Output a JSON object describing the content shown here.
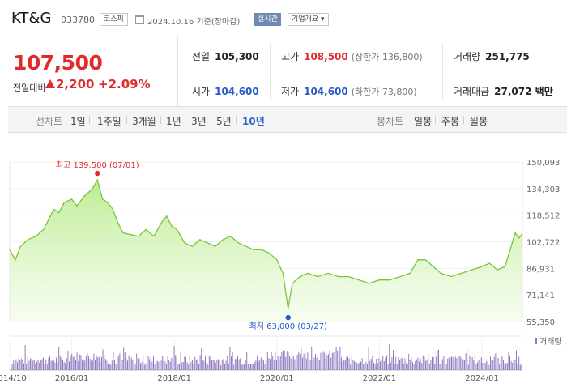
{
  "header": {
    "name": "KT&G",
    "code": "033780",
    "market": "코스피",
    "date": "2024.10.16 기준(장마감)",
    "realtime_label": "실시간",
    "corp_label": "기업개요 ▾"
  },
  "quote": {
    "price": "107,500",
    "change_label": "전일대비",
    "change": "2,200",
    "change_pct": "+2.09%"
  },
  "stats": {
    "prev_label": "전일",
    "prev": "105,300",
    "high_label": "고가",
    "high": "108,500",
    "high_limit": "(상한가 136,800)",
    "volume_label": "거래량",
    "volume": "251,775",
    "open_label": "시가",
    "open": "104,600",
    "low_label": "저가",
    "low": "104,600",
    "low_limit": "(하한가 73,800)",
    "amount_label": "거래대금",
    "amount": "27,072 백만"
  },
  "period_tabs": {
    "label": "선차트",
    "items": [
      "1일",
      "1주일",
      "3개월",
      "1년",
      "3년",
      "5년",
      "10년"
    ],
    "active": "10년"
  },
  "candle_tabs": {
    "label": "봉차트",
    "items": [
      "일봉",
      "주봉",
      "월봉"
    ]
  },
  "colors": {
    "up": "#e12a2a",
    "down": "#2757c9",
    "line": "#7cc43a",
    "volume": "#8f7bc0"
  },
  "chart_data": {
    "type": "area",
    "ylim": [
      55350,
      150093
    ],
    "y_ticks": [
      "150,093",
      "134,303",
      "118,512",
      "102,722",
      "86,931",
      "71,141",
      "55,350"
    ],
    "x_ticks": [
      "2014/10",
      "2016/01",
      "2018/01",
      "2020/01",
      "2022/01",
      "2024/01"
    ],
    "xlim": [
      "2014/10",
      "2024/10"
    ],
    "series": [
      {
        "values": [
          [
            2014.79,
            98000
          ],
          [
            2014.9,
            92000
          ],
          [
            2015.0,
            100000
          ],
          [
            2015.15,
            104000
          ],
          [
            2015.3,
            106000
          ],
          [
            2015.45,
            110000
          ],
          [
            2015.55,
            116000
          ],
          [
            2015.65,
            122000
          ],
          [
            2015.75,
            120000
          ],
          [
            2015.85,
            126000
          ],
          [
            2016.0,
            128000
          ],
          [
            2016.1,
            124000
          ],
          [
            2016.25,
            130000
          ],
          [
            2016.4,
            134000
          ],
          [
            2016.5,
            139500
          ],
          [
            2016.6,
            128000
          ],
          [
            2016.7,
            126000
          ],
          [
            2016.8,
            122000
          ],
          [
            2016.9,
            114000
          ],
          [
            2017.0,
            108000
          ],
          [
            2017.15,
            107000
          ],
          [
            2017.3,
            106000
          ],
          [
            2017.45,
            110000
          ],
          [
            2017.6,
            106000
          ],
          [
            2017.75,
            114000
          ],
          [
            2017.85,
            118000
          ],
          [
            2017.95,
            112000
          ],
          [
            2018.05,
            110000
          ],
          [
            2018.2,
            102000
          ],
          [
            2018.35,
            100000
          ],
          [
            2018.5,
            104000
          ],
          [
            2018.65,
            102000
          ],
          [
            2018.8,
            100000
          ],
          [
            2018.95,
            104000
          ],
          [
            2019.1,
            106000
          ],
          [
            2019.25,
            102000
          ],
          [
            2019.4,
            100000
          ],
          [
            2019.55,
            98000
          ],
          [
            2019.7,
            98000
          ],
          [
            2019.85,
            96000
          ],
          [
            2020.0,
            92000
          ],
          [
            2020.12,
            84000
          ],
          [
            2020.22,
            63000
          ],
          [
            2020.3,
            78000
          ],
          [
            2020.45,
            82000
          ],
          [
            2020.6,
            84000
          ],
          [
            2020.8,
            82000
          ],
          [
            2021.0,
            84000
          ],
          [
            2021.2,
            82000
          ],
          [
            2021.4,
            82000
          ],
          [
            2021.6,
            80000
          ],
          [
            2021.8,
            78000
          ],
          [
            2022.0,
            80000
          ],
          [
            2022.2,
            80000
          ],
          [
            2022.4,
            82000
          ],
          [
            2022.6,
            84000
          ],
          [
            2022.75,
            92000
          ],
          [
            2022.9,
            92000
          ],
          [
            2023.05,
            88000
          ],
          [
            2023.2,
            84000
          ],
          [
            2023.4,
            82000
          ],
          [
            2023.6,
            84000
          ],
          [
            2023.8,
            86000
          ],
          [
            2024.0,
            88000
          ],
          [
            2024.15,
            90000
          ],
          [
            2024.3,
            86000
          ],
          [
            2024.45,
            88000
          ],
          [
            2024.55,
            98000
          ],
          [
            2024.65,
            108000
          ],
          [
            2024.72,
            105000
          ],
          [
            2024.79,
            107500
          ]
        ]
      }
    ],
    "volume_label": "거래량",
    "high_annotation": {
      "text": "최고 139,500 (07/01)",
      "x": 2016.5,
      "y": 139500
    },
    "low_annotation": {
      "text": "최저 63,000 (03/27)",
      "x": 2020.22,
      "y": 63000
    }
  }
}
